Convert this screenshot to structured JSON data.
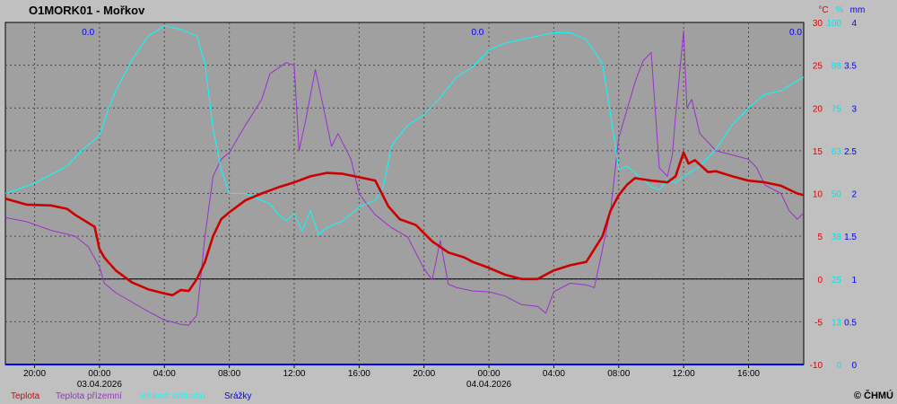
{
  "chart_data": {
    "type": "line",
    "title": "O1MORK01 - Mořkov",
    "units": {
      "temp": "°C",
      "humidity": "%",
      "precip": "mm"
    },
    "copyright": "© ČHMÚ",
    "x_ticks": [
      "20:00",
      "00:00",
      "04:00",
      "08:00",
      "12:00",
      "16:00",
      "20:00",
      "00:00",
      "04:00",
      "08:00",
      "12:00",
      "16:00"
    ],
    "x_tick_hours": [
      -4,
      0,
      4,
      8,
      12,
      16,
      20,
      24,
      28,
      32,
      36,
      40
    ],
    "dates": [
      {
        "label": "03.04.2026",
        "hour": 0
      },
      {
        "label": "04.04.2026",
        "hour": 24
      }
    ],
    "x_range": [
      -5.8,
      43.4
    ],
    "temp_axis": {
      "range": [
        -10,
        30
      ],
      "ticks": [
        "30",
        "25",
        "20",
        "15",
        "10",
        "5",
        "0",
        "-5",
        "-10"
      ]
    },
    "humidity_axis": {
      "range": [
        0,
        100
      ],
      "ticks": [
        "100",
        "88",
        "75",
        "63",
        "50",
        "38",
        "25",
        "13",
        "0"
      ]
    },
    "precip_axis": {
      "range": [
        0,
        4
      ],
      "ticks": [
        "4",
        "3.5",
        "3",
        "2.5",
        "2",
        "1.5",
        "1",
        "0.5",
        "0"
      ]
    },
    "daily_precip_labels": [
      {
        "hour": -0.7,
        "text": "0.0"
      },
      {
        "hour": 23.3,
        "text": "0.0"
      },
      {
        "hour": 42.9,
        "text": "0.0"
      }
    ],
    "legend": [
      {
        "name": "Teplota",
        "color": "#e00000"
      },
      {
        "name": "Teplota přízemní",
        "color": "#9932cc"
      },
      {
        "name": "Vlhkost vzduchu",
        "color": "#00ffff"
      },
      {
        "name": "Srážky",
        "color": "#0000ff"
      }
    ],
    "series": [
      {
        "name": "Teplota",
        "axis": "temp",
        "color": "#cc0000",
        "width": 2.6,
        "x": [
          -5.8,
          -4.5,
          -3,
          -2,
          -1.5,
          -0.3,
          0,
          0.3,
          1,
          2,
          3,
          4,
          4.5,
          5,
          5.5,
          6,
          6.5,
          7,
          7.5,
          8,
          9,
          10,
          11,
          12,
          13,
          14,
          15,
          16,
          17,
          17.8,
          18.5,
          19.5,
          20.5,
          21.5,
          22.5,
          23,
          24,
          25,
          26,
          27,
          28,
          29,
          30,
          31,
          31.5,
          32,
          32.5,
          33,
          34,
          35,
          35.5,
          36,
          36.3,
          36.7,
          37.5,
          38,
          39,
          40,
          41,
          42,
          43,
          43.4
        ],
        "y": [
          9.4,
          8.7,
          8.6,
          8.2,
          7.5,
          6.1,
          3.5,
          2.5,
          1,
          -0.4,
          -1.2,
          -1.7,
          -1.9,
          -1.3,
          -1.4,
          0,
          2,
          5,
          7,
          7.8,
          9.2,
          10,
          10.7,
          11.3,
          12,
          12.4,
          12.3,
          11.9,
          11.5,
          8.5,
          7,
          6.3,
          4.4,
          3.1,
          2.5,
          2,
          1.3,
          0.5,
          0,
          0,
          1,
          1.6,
          2,
          5,
          8,
          9.8,
          11,
          11.8,
          11.5,
          11.3,
          12,
          14.8,
          13.5,
          13.9,
          12.5,
          12.6,
          12,
          11.5,
          11.3,
          10.9,
          10,
          9.8
        ]
      },
      {
        "name": "Teplota přízemní",
        "axis": "temp",
        "color": "#9932cc",
        "width": 1,
        "x": [
          -5.8,
          -4.5,
          -3,
          -1.5,
          -0.7,
          0,
          0.3,
          1,
          2,
          3,
          4,
          5,
          5.5,
          6,
          6.5,
          7,
          7.5,
          8,
          9,
          10,
          10.5,
          11.5,
          12,
          12.3,
          12.7,
          13.3,
          13.7,
          14.3,
          14.7,
          15.5,
          16,
          16.5,
          17,
          18,
          19,
          20,
          20.5,
          21,
          21.5,
          22,
          23,
          24,
          25,
          26,
          27,
          27.5,
          28,
          29,
          30,
          30.5,
          31,
          31.5,
          32,
          33,
          33.5,
          34,
          34.5,
          35,
          35.3,
          35.5,
          35.8,
          36,
          36.2,
          36.5,
          37,
          38,
          39,
          40,
          40.5,
          41,
          42,
          42.5,
          43,
          43.4
        ],
        "y": [
          7.2,
          6.7,
          5.7,
          5,
          3.8,
          1.4,
          -0.5,
          -1.6,
          -2.7,
          -3.8,
          -4.8,
          -5.3,
          -5.4,
          -4.2,
          5,
          12,
          14,
          14.8,
          18,
          21,
          24,
          25.3,
          25,
          15,
          18.5,
          24.5,
          21,
          15.5,
          17,
          14,
          10,
          8.7,
          7.5,
          6,
          4.9,
          1.2,
          -0.1,
          4.5,
          -0.6,
          -1,
          -1.4,
          -1.5,
          -2,
          -3,
          -3.2,
          -4,
          -1.5,
          -0.5,
          -0.7,
          -1,
          3.5,
          8,
          16.5,
          23,
          25.5,
          26.5,
          13,
          12,
          14.5,
          19,
          25,
          29,
          20,
          21,
          17,
          15,
          14.5,
          14,
          13,
          11,
          10,
          8,
          7,
          7.7
        ]
      },
      {
        "name": "Vlhkost vzduchu",
        "axis": "humidity",
        "color": "#00ffff",
        "width": 1,
        "x": [
          -5.8,
          -4,
          -2,
          -1,
          0,
          0.5,
          1,
          2,
          3,
          4,
          5,
          6,
          6.5,
          7,
          7.5,
          8,
          9,
          10,
          10.5,
          11,
          11.5,
          12,
          12.5,
          13,
          13.5,
          14,
          15,
          16,
          17,
          17.5,
          18,
          19,
          20,
          21,
          22,
          23,
          24,
          25,
          26,
          27,
          28,
          29,
          30,
          31,
          31.5,
          32,
          32.5,
          33,
          34,
          34.5,
          35,
          35.5,
          36,
          37,
          38,
          39,
          40,
          41,
          42,
          43,
          43.4
        ],
        "y": [
          50,
          53,
          58,
          63,
          67,
          74,
          80,
          89,
          96,
          99,
          98,
          96,
          88,
          69,
          57,
          50,
          50,
          48,
          47,
          44,
          42,
          44,
          39,
          45,
          38,
          40,
          42,
          46,
          48,
          52,
          64,
          70,
          73,
          78,
          84,
          87,
          92,
          94,
          95,
          96,
          97,
          97,
          95,
          88,
          73,
          57,
          58,
          56,
          52,
          51,
          54,
          53,
          55,
          58,
          63,
          70,
          75,
          79,
          80,
          83,
          84
        ]
      },
      {
        "name": "Srážky",
        "axis": "precip",
        "color": "#0000ff",
        "width": 2,
        "x": [
          -5.8,
          43.4
        ],
        "y": [
          0,
          0
        ]
      }
    ]
  }
}
